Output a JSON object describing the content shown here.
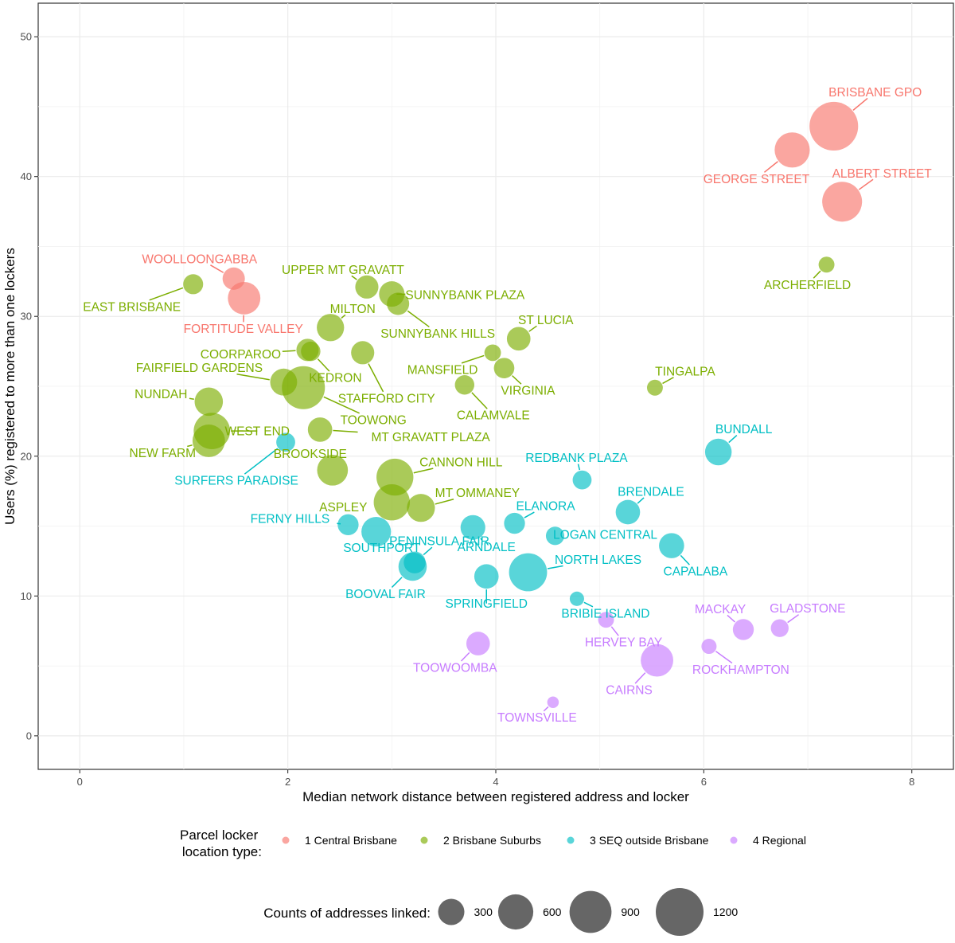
{
  "chart_data": {
    "type": "scatter",
    "xlabel": "Median network distance between registered address and locker",
    "ylabel": "Users (%) registered to more than one lockers",
    "xlim": [
      -0.4,
      8.4
    ],
    "ylim": [
      -2.4,
      52.4
    ],
    "x_ticks": [
      0,
      2,
      4,
      6,
      8
    ],
    "y_ticks": [
      0,
      10,
      20,
      30,
      40,
      50
    ],
    "grid": true,
    "legend_placement": "bottom",
    "color_legend": {
      "title_lines": [
        "Parcel locker",
        "location type:"
      ],
      "entries": [
        {
          "label": "1 Central Brisbane",
          "color": "#F8766D"
        },
        {
          "label": "2 Brisbane Suburbs",
          "color": "#7CAE00"
        },
        {
          "label": "3 SEQ outside Brisbane",
          "color": "#00BFC4"
        },
        {
          "label": "4 Regional",
          "color": "#C77CFF"
        }
      ]
    },
    "size_legend": {
      "title": "Counts of addresses linked:",
      "values": [
        300,
        600,
        900,
        1200
      ]
    },
    "points": [
      {
        "name": "BRISBANE GPO",
        "group": 0,
        "x": 7.25,
        "y": 43.6,
        "count": 1250
      },
      {
        "name": "GEORGE STREET",
        "group": 0,
        "x": 6.85,
        "y": 41.9,
        "count": 600
      },
      {
        "name": "ALBERT STREET",
        "group": 0,
        "x": 7.33,
        "y": 38.2,
        "count": 800
      },
      {
        "name": "WOOLLOONGABBA",
        "group": 0,
        "x": 1.48,
        "y": 32.7,
        "count": 200
      },
      {
        "name": "FORTITUDE VALLEY",
        "group": 0,
        "x": 1.58,
        "y": 31.3,
        "count": 500
      },
      {
        "name": "EAST BRISBANE",
        "group": 1,
        "x": 1.09,
        "y": 32.3,
        "count": 150
      },
      {
        "name": "UPPER MT GRAVATT",
        "group": 1,
        "x": 2.76,
        "y": 32.1,
        "count": 220
      },
      {
        "name": "SUNNYBANK PLAZA",
        "group": 1,
        "x": 3.0,
        "y": 31.6,
        "count": 280
      },
      {
        "name": "SUNNYBANK HILLS",
        "group": 1,
        "x": 3.06,
        "y": 30.9,
        "count": 200
      },
      {
        "name": "ARCHERFIELD",
        "group": 1,
        "x": 7.18,
        "y": 33.7,
        "count": 80
      },
      {
        "name": "MILTON",
        "group": 1,
        "x": 2.41,
        "y": 29.2,
        "count": 330
      },
      {
        "name": "ST LUCIA",
        "group": 1,
        "x": 4.22,
        "y": 28.4,
        "count": 230
      },
      {
        "name": "COORPAROO",
        "group": 1,
        "x": 2.19,
        "y": 27.6,
        "count": 200
      },
      {
        "name": "KEDRON",
        "group": 1,
        "x": 2.22,
        "y": 27.5,
        "count": 140
      },
      {
        "name": "STAFFORD CITY",
        "group": 1,
        "x": 2.72,
        "y": 27.4,
        "count": 220
      },
      {
        "name": "MANSFIELD",
        "group": 1,
        "x": 3.97,
        "y": 27.4,
        "count": 90
      },
      {
        "name": "VIRGINIA",
        "group": 1,
        "x": 4.08,
        "y": 26.3,
        "count": 160
      },
      {
        "name": "TINGALPA",
        "group": 1,
        "x": 5.53,
        "y": 24.9,
        "count": 80
      },
      {
        "name": "FAIRFIELD GARDENS",
        "group": 1,
        "x": 1.96,
        "y": 25.3,
        "count": 320
      },
      {
        "name": "TOOWONG",
        "group": 1,
        "x": 2.15,
        "y": 24.9,
        "count": 950
      },
      {
        "name": "CALAMVALE",
        "group": 1,
        "x": 3.7,
        "y": 25.1,
        "count": 140
      },
      {
        "name": "NUNDAH",
        "group": 1,
        "x": 1.24,
        "y": 23.9,
        "count": 360
      },
      {
        "name": "WEST END",
        "group": 1,
        "x": 1.27,
        "y": 21.8,
        "count": 650
      },
      {
        "name": "NEW FARM",
        "group": 1,
        "x": 1.24,
        "y": 21.1,
        "count": 500
      },
      {
        "name": "MT GRAVATT PLAZA",
        "group": 1,
        "x": 2.31,
        "y": 21.9,
        "count": 250
      },
      {
        "name": "BROOKSIDE",
        "group": 1,
        "x": 2.43,
        "y": 19.0,
        "count": 440
      },
      {
        "name": "CANNON HILL",
        "group": 1,
        "x": 3.03,
        "y": 18.5,
        "count": 670
      },
      {
        "name": "ASPLEY",
        "group": 1,
        "x": 3.0,
        "y": 16.7,
        "count": 640
      },
      {
        "name": "MT OMMANEY",
        "group": 1,
        "x": 3.28,
        "y": 16.3,
        "count": 350
      },
      {
        "name": "SURFERS PARADISE",
        "group": 2,
        "x": 1.98,
        "y": 21.0,
        "count": 130
      },
      {
        "name": "BUNDALL",
        "group": 2,
        "x": 6.14,
        "y": 20.3,
        "count": 310
      },
      {
        "name": "REDBANK PLAZA",
        "group": 2,
        "x": 4.83,
        "y": 18.3,
        "count": 130
      },
      {
        "name": "BRENDALE",
        "group": 2,
        "x": 5.27,
        "y": 16.0,
        "count": 250
      },
      {
        "name": "ELANORA",
        "group": 2,
        "x": 4.18,
        "y": 15.2,
        "count": 170
      },
      {
        "name": "FERNY HILLS",
        "group": 2,
        "x": 2.58,
        "y": 15.1,
        "count": 170
      },
      {
        "name": "LOGAN CENTRAL",
        "group": 2,
        "x": 4.57,
        "y": 14.3,
        "count": 120
      },
      {
        "name": "SOUTHPORT",
        "group": 2,
        "x": 2.85,
        "y": 14.6,
        "count": 400
      },
      {
        "name": "ARNDALE",
        "group": 2,
        "x": 3.78,
        "y": 14.9,
        "count": 260
      },
      {
        "name": "CAPALABA",
        "group": 2,
        "x": 5.69,
        "y": 13.6,
        "count": 270
      },
      {
        "name": "PENINSULA FAIR",
        "group": 2,
        "x": 3.22,
        "y": 12.4,
        "count": 190
      },
      {
        "name": "BOOVAL FAIR",
        "group": 2,
        "x": 3.2,
        "y": 12.1,
        "count": 360
      },
      {
        "name": "NORTH LAKES",
        "group": 2,
        "x": 4.31,
        "y": 11.7,
        "count": 720
      },
      {
        "name": "SPRINGFIELD",
        "group": 2,
        "x": 3.91,
        "y": 11.4,
        "count": 250
      },
      {
        "name": "BRIBIE ISLAND",
        "group": 2,
        "x": 4.78,
        "y": 9.8,
        "count": 60
      },
      {
        "name": "HERVEY BAY",
        "group": 3,
        "x": 5.06,
        "y": 8.3,
        "count": 80
      },
      {
        "name": "MACKAY",
        "group": 3,
        "x": 6.38,
        "y": 7.6,
        "count": 170
      },
      {
        "name": "GLADSTONE",
        "group": 3,
        "x": 6.73,
        "y": 7.7,
        "count": 110
      },
      {
        "name": "TOOWOOMBA",
        "group": 3,
        "x": 3.83,
        "y": 6.6,
        "count": 230
      },
      {
        "name": "ROCKHAMPTON",
        "group": 3,
        "x": 6.05,
        "y": 6.4,
        "count": 70
      },
      {
        "name": "CAIRNS",
        "group": 3,
        "x": 5.55,
        "y": 5.4,
        "count": 500
      },
      {
        "name": "TOWNSVILLE",
        "group": 3,
        "x": 4.55,
        "y": 2.4,
        "count": 30
      }
    ]
  }
}
